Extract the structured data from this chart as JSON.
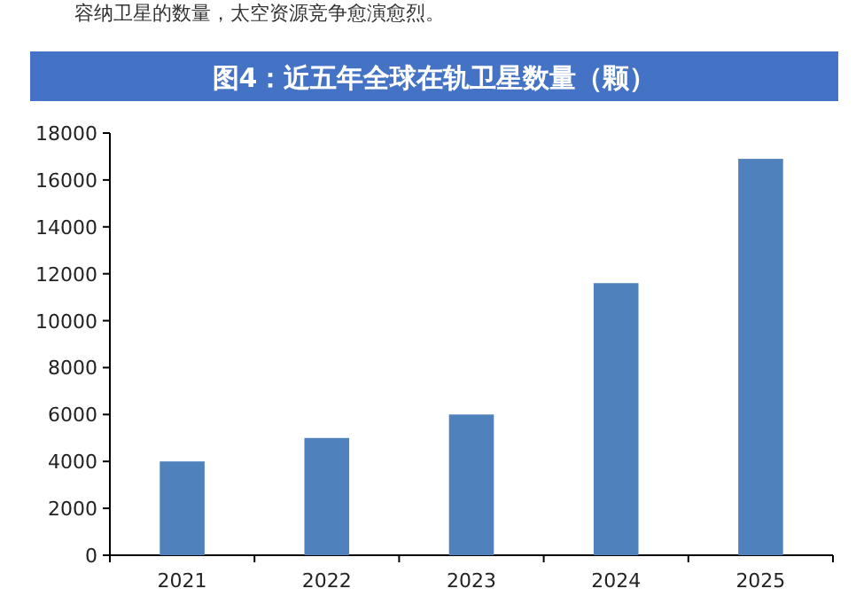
{
  "chart_data": {
    "type": "bar",
    "title": "图4：近五年全球在轨卫星数量（颗）",
    "annotations": [
      "容纳卫星的数量，太空资源竞争愈演愈烈。"
    ],
    "categories": [
      "2021",
      "2022",
      "2023",
      "2024",
      "2025"
    ],
    "values": [
      4000,
      5000,
      6000,
      11600,
      16900
    ],
    "color": "#4f81bd",
    "ylim": [
      0,
      18000
    ],
    "yticks": [
      0,
      2000,
      4000,
      6000,
      8000,
      10000,
      12000,
      14000,
      16000,
      18000
    ],
    "grid": false
  }
}
